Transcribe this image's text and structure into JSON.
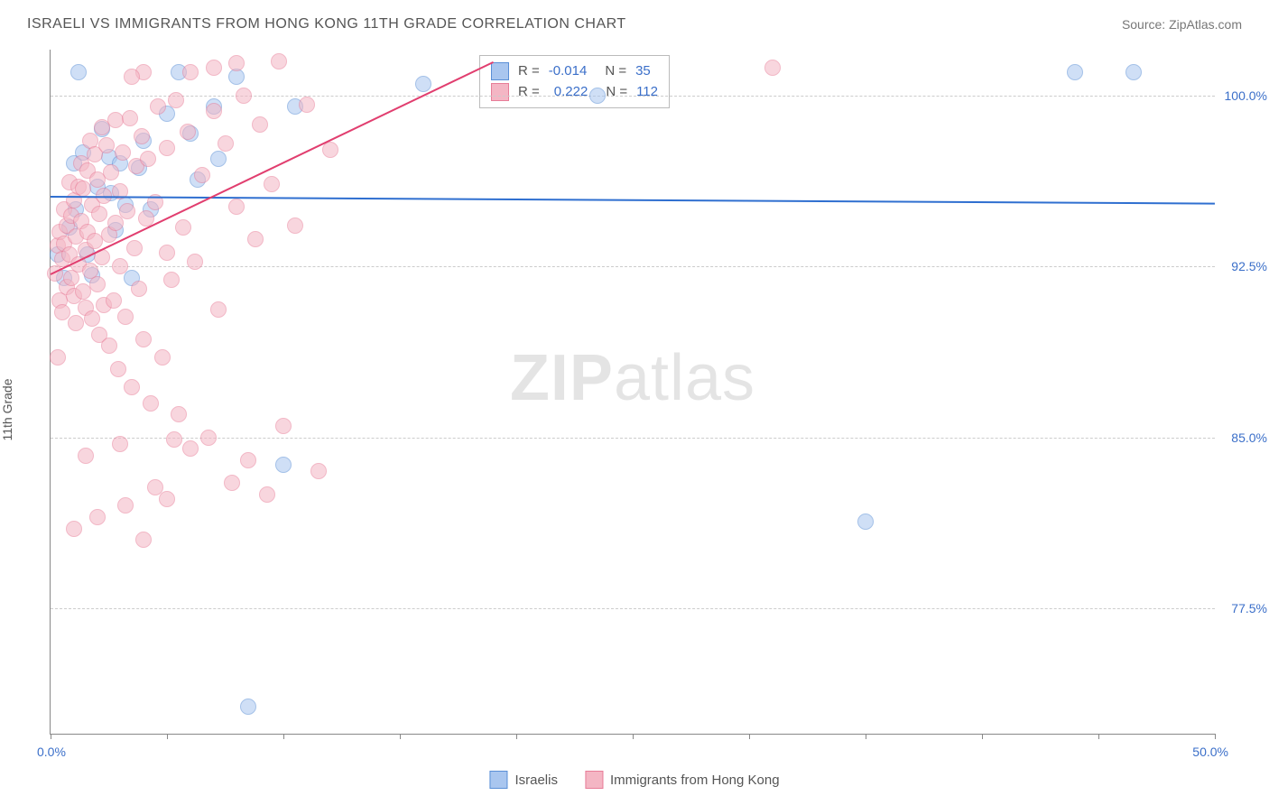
{
  "chart": {
    "type": "scatter",
    "title": "ISRAELI VS IMMIGRANTS FROM HONG KONG 11TH GRADE CORRELATION CHART",
    "source": "Source: ZipAtlas.com",
    "ylabel": "11th Grade",
    "watermark": "ZIPatlas",
    "xlim": [
      0,
      50
    ],
    "ylim": [
      72,
      102
    ],
    "xtick_labels": {
      "min": "0.0%",
      "max": "50.0%"
    },
    "xticks": [
      0,
      5,
      10,
      15,
      20,
      25,
      30,
      35,
      40,
      45,
      50
    ],
    "yticks": [
      {
        "value": 77.5,
        "label": "77.5%"
      },
      {
        "value": 85.0,
        "label": "85.0%"
      },
      {
        "value": 92.5,
        "label": "92.5%"
      },
      {
        "value": 100.0,
        "label": "100.0%"
      }
    ],
    "background_color": "#ffffff",
    "grid_color": "#cccccc",
    "axis_color": "#888888",
    "marker_radius": 8,
    "marker_opacity": 0.55,
    "series": [
      {
        "key": "israelis",
        "name": "Israelis",
        "fill": "#a9c6ef",
        "stroke": "#5a8fd6",
        "line_color": "#2f6fd0",
        "R": "-0.014",
        "N": "35",
        "trend": {
          "x1": 0,
          "y1": 95.6,
          "x2": 50,
          "y2": 95.3
        },
        "points": [
          [
            0.3,
            93.0
          ],
          [
            0.6,
            92.0
          ],
          [
            0.8,
            94.2
          ],
          [
            1.0,
            97.0
          ],
          [
            1.1,
            95.0
          ],
          [
            1.4,
            97.5
          ],
          [
            1.6,
            93.0
          ],
          [
            1.8,
            92.1
          ],
          [
            2.0,
            96.0
          ],
          [
            2.2,
            98.5
          ],
          [
            2.5,
            97.3
          ],
          [
            2.6,
            95.7
          ],
          [
            2.8,
            94.1
          ],
          [
            3.0,
            97.0
          ],
          [
            3.2,
            95.2
          ],
          [
            3.5,
            92.0
          ],
          [
            3.8,
            96.8
          ],
          [
            4.0,
            98.0
          ],
          [
            4.3,
            95.0
          ],
          [
            5.0,
            99.2
          ],
          [
            5.5,
            101.0
          ],
          [
            6.0,
            98.3
          ],
          [
            6.3,
            96.3
          ],
          [
            7.0,
            99.5
          ],
          [
            7.2,
            97.2
          ],
          [
            8.0,
            100.8
          ],
          [
            8.5,
            73.2
          ],
          [
            10.5,
            99.5
          ],
          [
            10.0,
            83.8
          ],
          [
            16.0,
            100.5
          ],
          [
            23.5,
            100.0
          ],
          [
            35.0,
            81.3
          ],
          [
            44.0,
            101.0
          ],
          [
            46.5,
            101.0
          ],
          [
            1.2,
            101.0
          ]
        ]
      },
      {
        "key": "hongkong",
        "name": "Immigrants from Hong Kong",
        "fill": "#f4b6c4",
        "stroke": "#e87d98",
        "line_color": "#e13e6f",
        "R": "0.222",
        "N": "112",
        "trend": {
          "x1": 0,
          "y1": 92.2,
          "x2": 19,
          "y2": 101.5
        },
        "points": [
          [
            0.2,
            92.2
          ],
          [
            0.3,
            93.4
          ],
          [
            0.4,
            91.0
          ],
          [
            0.4,
            94.0
          ],
          [
            0.5,
            92.8
          ],
          [
            0.5,
            90.5
          ],
          [
            0.6,
            93.5
          ],
          [
            0.6,
            95.0
          ],
          [
            0.7,
            94.3
          ],
          [
            0.7,
            91.6
          ],
          [
            0.8,
            93.0
          ],
          [
            0.8,
            96.2
          ],
          [
            0.9,
            92.0
          ],
          [
            0.9,
            94.7
          ],
          [
            1.0,
            91.2
          ],
          [
            1.0,
            95.4
          ],
          [
            1.1,
            93.8
          ],
          [
            1.1,
            90.0
          ],
          [
            1.2,
            96.0
          ],
          [
            1.2,
            92.6
          ],
          [
            1.3,
            94.5
          ],
          [
            1.3,
            97.0
          ],
          [
            1.4,
            91.4
          ],
          [
            1.4,
            95.9
          ],
          [
            1.5,
            93.2
          ],
          [
            1.5,
            90.7
          ],
          [
            1.6,
            96.7
          ],
          [
            1.6,
            94.0
          ],
          [
            1.7,
            92.3
          ],
          [
            1.7,
            98.0
          ],
          [
            1.8,
            95.2
          ],
          [
            1.8,
            90.2
          ],
          [
            1.9,
            93.6
          ],
          [
            1.9,
            97.4
          ],
          [
            2.0,
            91.7
          ],
          [
            2.0,
            96.3
          ],
          [
            2.1,
            94.8
          ],
          [
            2.1,
            89.5
          ],
          [
            2.2,
            92.9
          ],
          [
            2.2,
            98.6
          ],
          [
            2.3,
            95.6
          ],
          [
            2.3,
            90.8
          ],
          [
            2.4,
            97.8
          ],
          [
            2.5,
            93.9
          ],
          [
            2.5,
            89.0
          ],
          [
            2.6,
            96.6
          ],
          [
            2.7,
            91.0
          ],
          [
            2.8,
            94.4
          ],
          [
            2.8,
            98.9
          ],
          [
            2.9,
            88.0
          ],
          [
            3.0,
            95.8
          ],
          [
            3.0,
            92.5
          ],
          [
            3.1,
            97.5
          ],
          [
            3.2,
            90.3
          ],
          [
            3.3,
            94.9
          ],
          [
            3.4,
            99.0
          ],
          [
            3.5,
            87.2
          ],
          [
            3.6,
            93.3
          ],
          [
            3.7,
            96.9
          ],
          [
            3.8,
            91.5
          ],
          [
            3.9,
            98.2
          ],
          [
            4.0,
            89.3
          ],
          [
            4.1,
            94.6
          ],
          [
            4.2,
            97.2
          ],
          [
            4.3,
            86.5
          ],
          [
            4.5,
            95.3
          ],
          [
            4.6,
            99.5
          ],
          [
            4.8,
            88.5
          ],
          [
            5.0,
            93.1
          ],
          [
            5.0,
            97.7
          ],
          [
            5.2,
            91.9
          ],
          [
            5.4,
            99.8
          ],
          [
            5.5,
            86.0
          ],
          [
            5.7,
            94.2
          ],
          [
            5.9,
            98.4
          ],
          [
            6.0,
            84.5
          ],
          [
            6.2,
            92.7
          ],
          [
            6.5,
            96.5
          ],
          [
            6.8,
            85.0
          ],
          [
            7.0,
            99.3
          ],
          [
            7.2,
            90.6
          ],
          [
            7.5,
            97.9
          ],
          [
            7.8,
            83.0
          ],
          [
            8.0,
            95.1
          ],
          [
            8.3,
            100.0
          ],
          [
            8.5,
            84.0
          ],
          [
            8.8,
            93.7
          ],
          [
            9.0,
            98.7
          ],
          [
            9.3,
            82.5
          ],
          [
            9.5,
            96.1
          ],
          [
            9.8,
            101.5
          ],
          [
            10.0,
            85.5
          ],
          [
            10.5,
            94.3
          ],
          [
            11.0,
            99.6
          ],
          [
            11.5,
            83.5
          ],
          [
            12.0,
            97.6
          ],
          [
            1.0,
            81.0
          ],
          [
            1.5,
            84.2
          ],
          [
            2.0,
            81.5
          ],
          [
            3.0,
            84.7
          ],
          [
            3.2,
            82.0
          ],
          [
            4.0,
            80.5
          ],
          [
            4.5,
            82.8
          ],
          [
            5.3,
            84.9
          ],
          [
            5.0,
            82.3
          ],
          [
            6.0,
            101.0
          ],
          [
            7.0,
            101.2
          ],
          [
            8.0,
            101.4
          ],
          [
            4.0,
            101.0
          ],
          [
            3.5,
            100.8
          ],
          [
            31.0,
            101.2
          ],
          [
            0.3,
            88.5
          ]
        ]
      }
    ],
    "legend": [
      {
        "swatch_fill": "#a9c6ef",
        "swatch_stroke": "#5a8fd6",
        "label": "Israelis"
      },
      {
        "swatch_fill": "#f4b6c4",
        "swatch_stroke": "#e87d98",
        "label": "Immigrants from Hong Kong"
      }
    ]
  }
}
